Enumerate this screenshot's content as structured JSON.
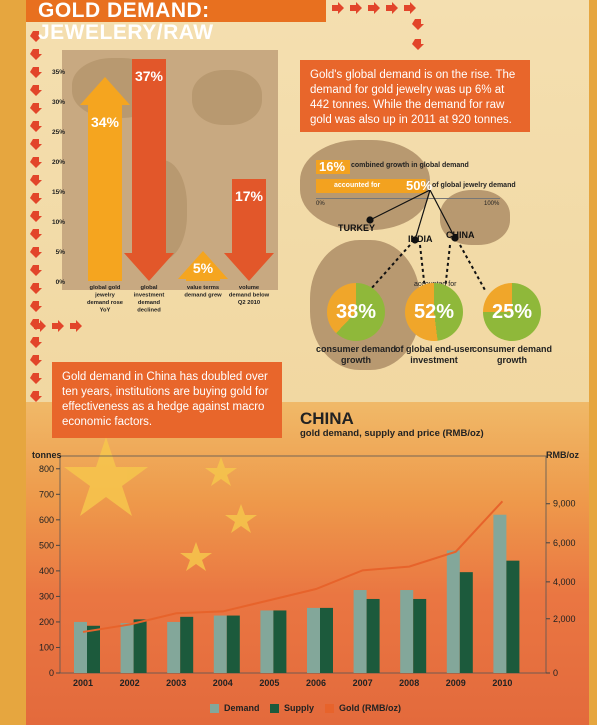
{
  "header": {
    "title": "GOLD DEMAND: JEWELERY/RAW"
  },
  "callout_top": {
    "text": "Gold's global demand is on the rise. The demand for gold jewelry was up 6% at 442 tonnes. While the demand for raw gold was also up in 2011 at 920 tonnes."
  },
  "callout_china": {
    "text": "Gold demand in China has doubled over ten years, institutions are buying gold for effectiveness as a hedge against macro economic factors."
  },
  "bar_chart": {
    "type": "bar",
    "yticks": [
      "35%",
      "30%",
      "25%",
      "20%",
      "15%",
      "10%",
      "5%",
      "0%"
    ],
    "ylim": [
      0,
      35
    ],
    "bars": [
      {
        "value": 34,
        "value_label": "34%",
        "label": "global gold jewelry demand rose YoY",
        "color": "#f5a51f",
        "direction": "up"
      },
      {
        "value": 37,
        "value_label": "37%",
        "label": "global investment demand declined",
        "color": "#e2572a",
        "direction": "down"
      },
      {
        "value": 5,
        "value_label": "5%",
        "label": "value terms demand grew",
        "color": "#f5a51f",
        "direction": "up"
      },
      {
        "value": 17,
        "value_label": "17%",
        "label": "volume demand below Q2 2010",
        "color": "#e2572a",
        "direction": "down"
      }
    ]
  },
  "growth_bars": {
    "row1": {
      "value_label": "16%",
      "text": "combined growth in global demand",
      "value": 16
    },
    "row2": {
      "prefix": "accounted for",
      "value_label": "50%",
      "text": "of global jewelry demand",
      "value": 50
    },
    "axis_min": "0%",
    "axis_max": "100%"
  },
  "countries": [
    "TURKEY",
    "INDIA",
    "CHINA"
  ],
  "accounted_for": "accounted for",
  "circles": [
    {
      "value": 38,
      "label": "38%",
      "caption": "consumer demand growth"
    },
    {
      "value": 52,
      "label": "52%",
      "caption": "of global end-user investment"
    },
    {
      "value": 25,
      "label": "25%",
      "caption": "consumer demand growth"
    }
  ],
  "china_chart": {
    "title": "CHINA",
    "subtitle": "gold demand, supply and price (RMB/oz)",
    "left_axis_label": "tonnes",
    "right_axis_label": "RMB/oz",
    "left_ticks": [
      "800",
      "700",
      "600",
      "500",
      "400",
      "300",
      "200",
      "100",
      "0"
    ],
    "right_ticks": [
      "9,000",
      "6,000",
      "4,000",
      "2,000",
      "0"
    ],
    "legend": [
      "Demand",
      "Supply",
      "Gold (RMB/oz)"
    ],
    "colors": {
      "demand": "#83a79a",
      "supply": "#1c5a3c",
      "gold": "#e7632b"
    }
  },
  "chart_data": {
    "type": "bar",
    "categories": [
      "2001",
      "2002",
      "2003",
      "2004",
      "2005",
      "2006",
      "2007",
      "2008",
      "2009",
      "2010"
    ],
    "series": [
      {
        "name": "Demand",
        "values": [
          200,
          195,
          200,
          225,
          245,
          255,
          325,
          325,
          480,
          620
        ]
      },
      {
        "name": "Supply",
        "values": [
          185,
          210,
          220,
          225,
          245,
          255,
          290,
          290,
          395,
          440
        ]
      },
      {
        "name": "Gold (RMB/oz)",
        "values": [
          2200,
          2600,
          3200,
          3300,
          3900,
          4500,
          5500,
          5700,
          6500,
          9200
        ]
      }
    ],
    "ylabel": "tonnes",
    "ylim": [
      0,
      850
    ],
    "y2label": "RMB/oz",
    "y2lim": [
      0,
      10000
    ]
  }
}
